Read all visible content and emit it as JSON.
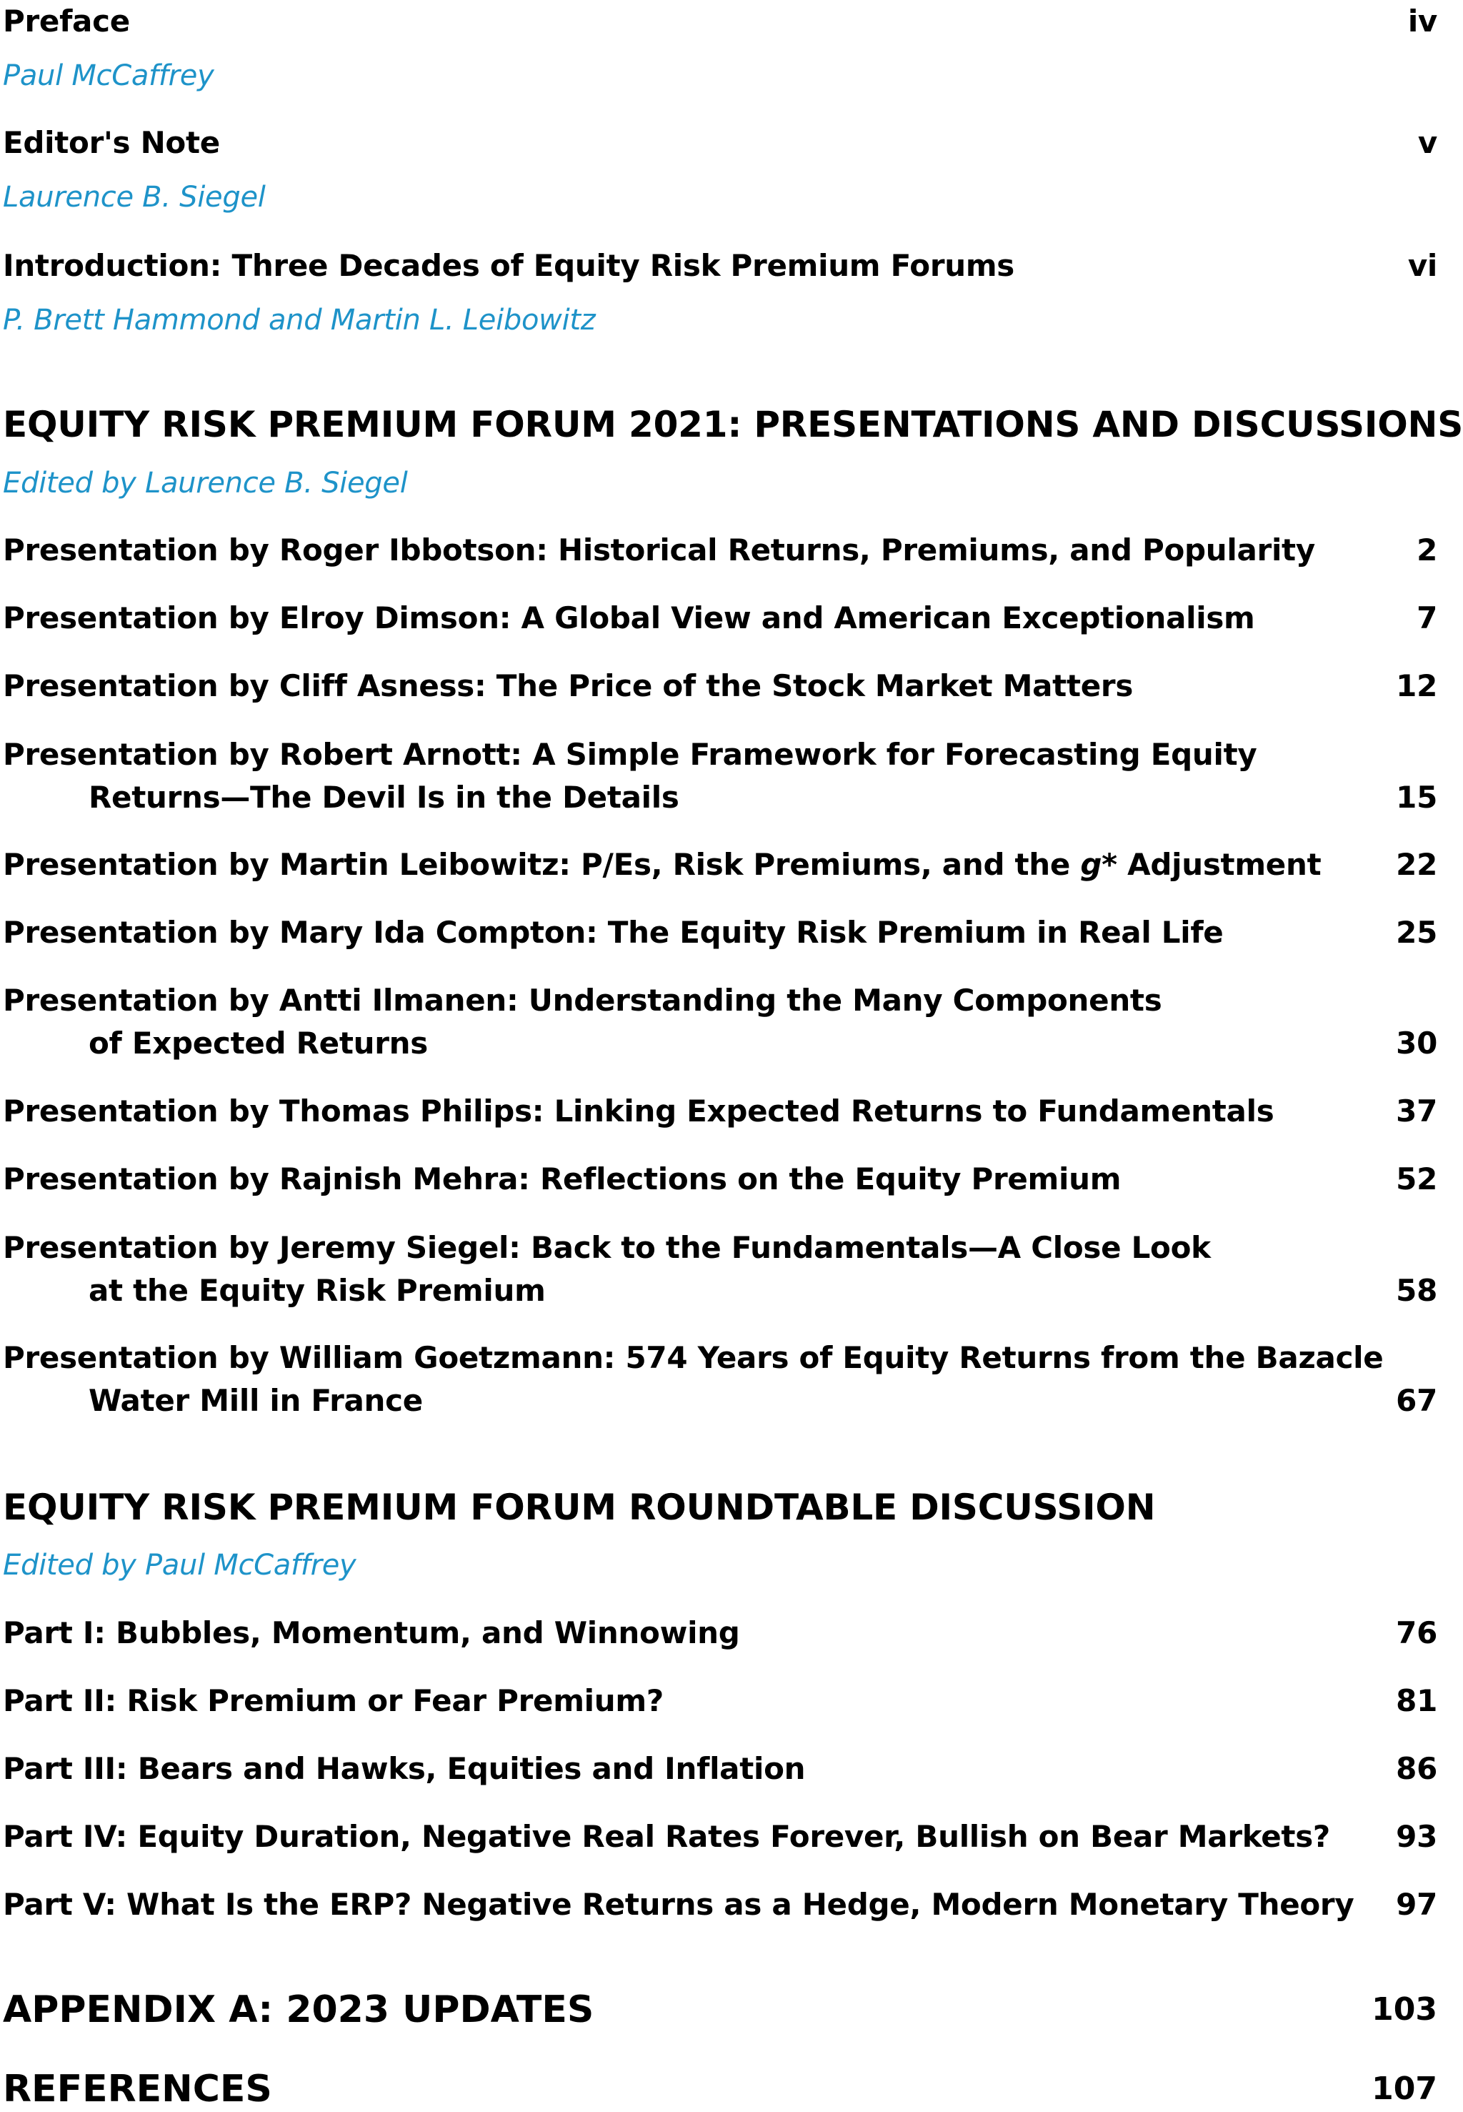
{
  "front_matter": [
    {
      "title": "Preface",
      "page": "iv",
      "author": "Paul McCaffrey"
    },
    {
      "title": "Editor's Note",
      "page": "v",
      "author": "Laurence B. Siegel"
    },
    {
      "title": "Introduction: Three Decades of Equity Risk Premium Forums",
      "page": "vi",
      "author": "P. Brett Hammond and Martin L. Leibowitz"
    }
  ],
  "section1": {
    "heading": "EQUITY RISK PREMIUM FORUM 2021: PRESENTATIONS AND DISCUSSIONS",
    "editor": "Edited by Laurence B. Siegel",
    "entries": [
      {
        "title": "Presentation by Roger Ibbotson: Historical Returns, Premiums, and Popularity",
        "page": "2"
      },
      {
        "title": "Presentation by Elroy Dimson: A Global View and American Exceptionalism",
        "page": "7"
      },
      {
        "title": "Presentation by Cliff Asness: The Price of the Stock Market Matters",
        "page": "12"
      },
      {
        "title": "Presentation by Robert Arnott: A Simple Framework for Forecasting Equity",
        "title_cont": "Returns—The Devil Is in the Details",
        "page": "15"
      },
      {
        "title_pre": "Presentation by Martin Leibowitz: P/Es, Risk Premiums, and the ",
        "title_italic": "g*",
        "title_post": " Adjustment",
        "page": "22"
      },
      {
        "title": "Presentation by Mary Ida Compton: The Equity Risk Premium in Real Life",
        "page": "25"
      },
      {
        "title": "Presentation by Antti Ilmanen: Understanding the Many Components",
        "title_cont": "of Expected Returns",
        "page": "30"
      },
      {
        "title": "Presentation by Thomas Philips: Linking Expected Returns to Fundamentals",
        "page": "37"
      },
      {
        "title": "Presentation by Rajnish Mehra: Reflections on the Equity Premium",
        "page": "52"
      },
      {
        "title": "Presentation by Jeremy Siegel: Back to the Fundamentals—A Close Look",
        "title_cont": "at the Equity Risk Premium",
        "page": "58"
      },
      {
        "title": "Presentation by William Goetzmann: 574 Years of Equity Returns from the Bazacle",
        "title_cont": "Water Mill in France",
        "page": "67"
      }
    ]
  },
  "section2": {
    "heading": "EQUITY RISK PREMIUM FORUM ROUNDTABLE DISCUSSION",
    "editor": "Edited by Paul McCaffrey",
    "entries": [
      {
        "title": "Part I: Bubbles, Momentum, and Winnowing",
        "page": "76"
      },
      {
        "title": "Part II: Risk Premium or Fear Premium?",
        "page": "81"
      },
      {
        "title": "Part III: Bears and Hawks, Equities and Inflation",
        "page": "86"
      },
      {
        "title": "Part IV: Equity Duration, Negative Real Rates Forever, Bullish on Bear Markets?",
        "page": "93"
      },
      {
        "title": "Part V: What Is the ERP? Negative Returns as a Hedge, Modern Monetary Theory",
        "page": "97"
      }
    ]
  },
  "appendix": {
    "title": "APPENDIX A: 2023 UPDATES",
    "page": "103"
  },
  "references": {
    "title": "REFERENCES",
    "page": "107"
  },
  "colors": {
    "author": "#1e93c9",
    "text": "#000000"
  }
}
